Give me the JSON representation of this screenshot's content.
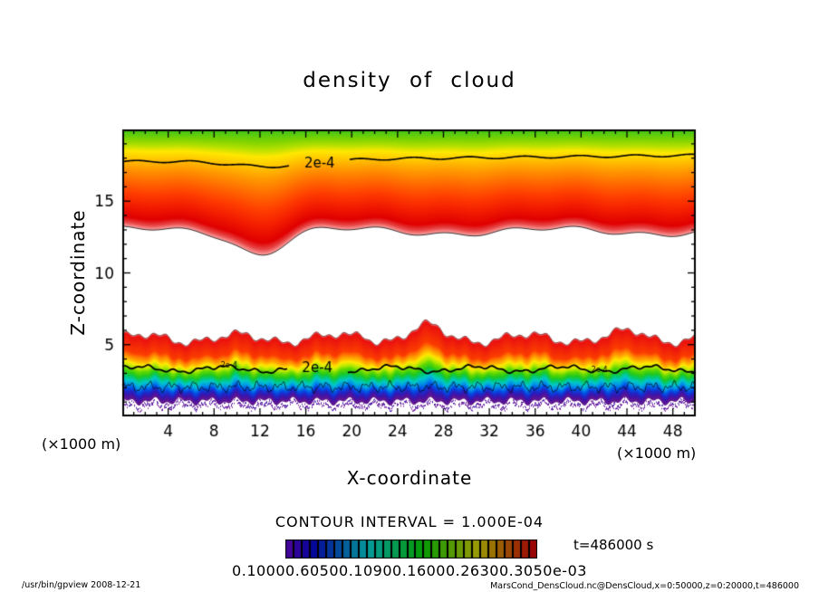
{
  "chart_data": {
    "type": "filled-contour",
    "title": "density of cloud",
    "xlabel": "X-coordinate",
    "ylabel": "Z-coordinate",
    "axis_unit_label": "(×1000 m)",
    "xlim": [
      0,
      50
    ],
    "ylim": [
      0,
      20
    ],
    "x_major_ticks": [
      4,
      8,
      12,
      16,
      20,
      24,
      28,
      32,
      36,
      40,
      44,
      48
    ],
    "x_minor_tick_every": 1,
    "y_major_ticks": [
      5,
      10,
      15
    ],
    "y_minor_tick_every": 1,
    "contour_interval_label": "CONTOUR INTERVAL = 1.000E-04",
    "contour_label": "2e-4",
    "time_label": "t=486000 s",
    "colorbar_tick_text": "0.10000.60500.10900.16000.26300.3050e-03",
    "grid": false,
    "layers": [
      {
        "name": "upper cloud layer",
        "z_top": 20,
        "z_bottom_mean": 12.9,
        "dip_x": 12,
        "dip_depth": 1.5,
        "labeled_contour_z": 17.75,
        "colors_top_to_bottom": [
          "green",
          "yellow",
          "orange",
          "red",
          "pink-fringe"
        ],
        "gradient": [
          [
            0,
            "#3cc41c"
          ],
          [
            0.1,
            "#7fd400"
          ],
          [
            0.16,
            "#b5e000"
          ],
          [
            0.22,
            "#ffe800"
          ],
          [
            0.3,
            "#ffc400"
          ],
          [
            0.4,
            "#ff9800"
          ],
          [
            0.52,
            "#ff6a00"
          ],
          [
            0.64,
            "#ff4000"
          ],
          [
            0.76,
            "#f52000"
          ],
          [
            0.9,
            "#e00000"
          ],
          [
            0.955,
            "#e84848"
          ],
          [
            1,
            "#ffaaaa"
          ]
        ]
      },
      {
        "name": "lower cloud layer",
        "z_top_mean": 5.45,
        "z_bottom_mean": 1.05,
        "labeled_contour_z": 3.3,
        "thin_contour_z": 2.05,
        "colors_top_to_bottom": [
          "red",
          "orange",
          "yellow",
          "green",
          "cyan",
          "blue",
          "navy",
          "purple"
        ],
        "gradient": [
          [
            0,
            "#ff9898"
          ],
          [
            0.025,
            "#ea1010"
          ],
          [
            0.27,
            "#fb3c00"
          ],
          [
            0.33,
            "#ff7e00"
          ],
          [
            0.385,
            "#ffb400"
          ],
          [
            0.43,
            "#ffe800"
          ],
          [
            0.48,
            "#c0ea00"
          ],
          [
            0.535,
            "#62d800"
          ],
          [
            0.6,
            "#1fc81f"
          ],
          [
            0.655,
            "#00c87e"
          ],
          [
            0.7,
            "#00c8c8"
          ],
          [
            0.76,
            "#0096e6"
          ],
          [
            0.82,
            "#0050e6"
          ],
          [
            0.87,
            "#1e28c8"
          ],
          [
            0.92,
            "#3c14aa"
          ],
          [
            0.965,
            "#5a1496"
          ],
          [
            1,
            "#641e8c"
          ]
        ]
      }
    ],
    "colorbar": {
      "n_cells": 31,
      "hue_start": 265,
      "hue_end": 0,
      "lightness": "31%"
    },
    "frame_color": "#000000"
  },
  "footer": {
    "left": "/usr/bin/gpview  2008-12-21",
    "right": "MarsCond_DensCloud.nc@DensCloud,x=0:50000,z=0:20000,t=486000"
  }
}
